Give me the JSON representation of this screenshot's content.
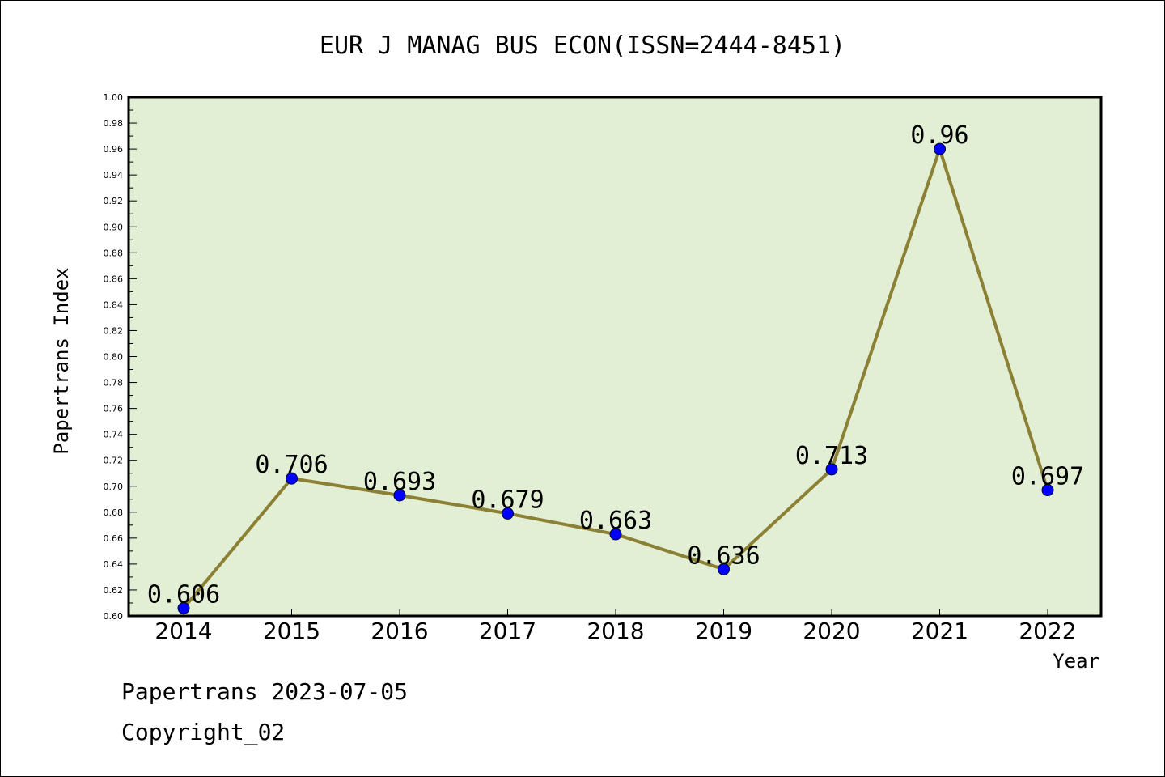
{
  "chart_data": {
    "type": "line",
    "title": "EUR J MANAG BUS ECON(ISSN=2444-8451)",
    "xlabel": "Year",
    "ylabel": "Papertrans Index",
    "categories": [
      "2014",
      "2015",
      "2016",
      "2017",
      "2018",
      "2019",
      "2020",
      "2021",
      "2022"
    ],
    "values": [
      0.606,
      0.706,
      0.693,
      0.679,
      0.663,
      0.636,
      0.713,
      0.96,
      0.697
    ],
    "data_labels": [
      "0.606",
      "0.706",
      "0.693",
      "0.679",
      "0.663",
      "0.636",
      "0.713",
      "0.96",
      "0.697"
    ],
    "ylim": [
      0.6,
      1.0
    ],
    "yticks": [
      "0.60",
      "0.62",
      "0.64",
      "0.66",
      "0.68",
      "0.70",
      "0.72",
      "0.74",
      "0.76",
      "0.78",
      "0.80",
      "0.82",
      "0.84",
      "0.86",
      "0.88",
      "0.90",
      "0.92",
      "0.94",
      "0.96",
      "0.98",
      "1.00"
    ],
    "grid": false,
    "plot_background": "#e2efd5",
    "line_color": "#8b8033",
    "marker_color": "#0000ff"
  },
  "footer": {
    "line1": "Papertrans 2023-07-05",
    "line2": "Copyright_02"
  }
}
